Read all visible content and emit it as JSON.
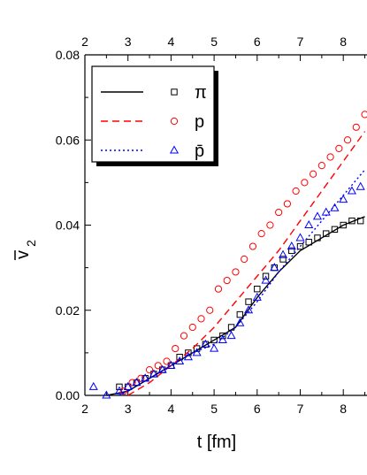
{
  "chart_data": {
    "type": "scatter",
    "xlabel": "t [fm]",
    "ylabel": "v̄₂",
    "xlim": [
      2,
      8.5
    ],
    "ylim": [
      0,
      0.08
    ],
    "x_ticks": [
      "2",
      "3",
      "4",
      "5",
      "6",
      "7",
      "8"
    ],
    "x_ticks_top": [
      "2",
      "3",
      "4",
      "5",
      "6",
      "7",
      "8"
    ],
    "y_ticks": [
      "0.00",
      "0.02",
      "0.04",
      "0.06",
      "0.08"
    ],
    "grid": false,
    "legend_position": "top-left",
    "legend": [
      "π",
      "p",
      "p̄"
    ],
    "series": [
      {
        "name": "π",
        "kind": "points",
        "marker": "square",
        "color": "#000000",
        "x": [
          2.8,
          3.0,
          3.2,
          3.4,
          3.6,
          3.8,
          4.0,
          4.2,
          4.4,
          4.6,
          4.8,
          5.0,
          5.2,
          5.4,
          5.6,
          5.8,
          6.0,
          6.2,
          6.4,
          6.6,
          6.8,
          7.0,
          7.2,
          7.4,
          7.6,
          7.8,
          8.0,
          8.2,
          8.4
        ],
        "y": [
          0.002,
          0.002,
          0.003,
          0.004,
          0.005,
          0.006,
          0.007,
          0.009,
          0.01,
          0.011,
          0.012,
          0.013,
          0.014,
          0.016,
          0.019,
          0.022,
          0.025,
          0.028,
          0.03,
          0.032,
          0.034,
          0.035,
          0.036,
          0.037,
          0.038,
          0.039,
          0.04,
          0.041,
          0.041
        ]
      },
      {
        "name": "π",
        "kind": "line",
        "style": "solid",
        "color": "#000000",
        "x": [
          2.5,
          3.0,
          3.5,
          4.0,
          4.5,
          5.0,
          5.5,
          6.0,
          6.5,
          7.0,
          7.5,
          8.0,
          8.5
        ],
        "y": [
          0.0,
          0.001,
          0.004,
          0.007,
          0.01,
          0.013,
          0.016,
          0.023,
          0.029,
          0.034,
          0.037,
          0.04,
          0.042
        ]
      },
      {
        "name": "p",
        "kind": "points",
        "marker": "circle",
        "color": "#ff0000",
        "x": [
          2.9,
          3.1,
          3.3,
          3.5,
          3.7,
          3.9,
          4.1,
          4.3,
          4.5,
          4.7,
          4.9,
          5.1,
          5.3,
          5.5,
          5.7,
          5.9,
          6.1,
          6.3,
          6.5,
          6.7,
          6.9,
          7.1,
          7.3,
          7.5,
          7.7,
          7.9,
          8.1,
          8.3,
          8.5
        ],
        "y": [
          0.001,
          0.003,
          0.004,
          0.006,
          0.007,
          0.008,
          0.011,
          0.014,
          0.016,
          0.018,
          0.02,
          0.025,
          0.027,
          0.029,
          0.032,
          0.035,
          0.038,
          0.04,
          0.043,
          0.045,
          0.048,
          0.05,
          0.052,
          0.054,
          0.056,
          0.058,
          0.06,
          0.063,
          0.066
        ]
      },
      {
        "name": "p",
        "kind": "line",
        "style": "dashed",
        "color": "#ff0000",
        "x": [
          3.0,
          3.5,
          4.0,
          4.5,
          5.0,
          5.5,
          6.0,
          6.5,
          7.0,
          7.5,
          8.0,
          8.5
        ],
        "y": [
          0.0,
          0.003,
          0.007,
          0.011,
          0.016,
          0.022,
          0.028,
          0.034,
          0.041,
          0.048,
          0.055,
          0.062
        ]
      },
      {
        "name": "p̄",
        "kind": "points",
        "marker": "triangle",
        "color": "#0000ff",
        "x": [
          2.2,
          2.5,
          2.8,
          3.0,
          3.2,
          3.4,
          3.6,
          3.8,
          4.0,
          4.2,
          4.4,
          4.6,
          4.8,
          5.0,
          5.2,
          5.4,
          5.6,
          5.8,
          6.0,
          6.2,
          6.4,
          6.6,
          6.8,
          7.0,
          7.2,
          7.4,
          7.6,
          7.8,
          8.0,
          8.2,
          8.4
        ],
        "y": [
          0.002,
          0.0,
          0.001,
          0.002,
          0.003,
          0.004,
          0.005,
          0.006,
          0.007,
          0.008,
          0.009,
          0.01,
          0.012,
          0.011,
          0.013,
          0.014,
          0.017,
          0.02,
          0.023,
          0.027,
          0.03,
          0.033,
          0.035,
          0.037,
          0.04,
          0.042,
          0.043,
          0.044,
          0.046,
          0.048,
          0.049
        ]
      },
      {
        "name": "p̄",
        "kind": "line",
        "style": "dotted",
        "color": "#0000ff",
        "x": [
          2.8,
          3.5,
          4.0,
          4.5,
          5.0,
          5.5,
          6.0,
          6.5,
          7.0,
          7.5,
          8.0,
          8.5
        ],
        "y": [
          0.0,
          0.004,
          0.007,
          0.01,
          0.012,
          0.016,
          0.022,
          0.029,
          0.035,
          0.041,
          0.047,
          0.053
        ]
      }
    ]
  }
}
